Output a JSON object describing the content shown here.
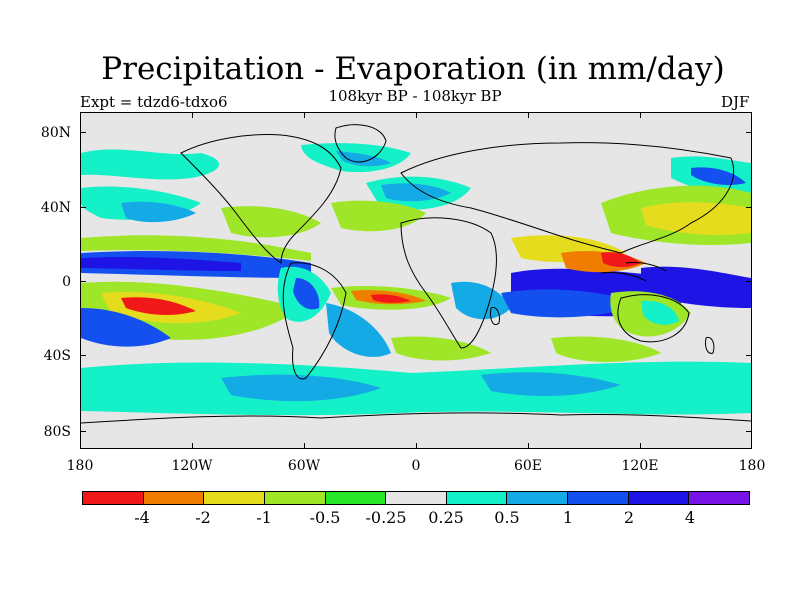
{
  "title": "Precipitation - Evaporation (in mm/day)",
  "subtitle": "108kyr BP - 108kyr BP",
  "experiment": "Expt = tdzd6-tdxo6",
  "season": "DJF",
  "y_ticks": [
    "80N",
    "40N",
    "0",
    "40S",
    "80S"
  ],
  "x_ticks": [
    "180",
    "120W",
    "60W",
    "0",
    "60E",
    "120E",
    "180"
  ],
  "colorbar": {
    "colors": [
      "#f01818",
      "#f07d00",
      "#e6dc1e",
      "#a0e628",
      "#28e628",
      "#e6e6e6",
      "#14f0c8",
      "#14aae6",
      "#1450f0",
      "#1e14e6",
      "#7814e6"
    ],
    "labels": [
      "-4",
      "-2",
      "-1",
      "-0.5",
      "-0.25",
      "0.25",
      "0.5",
      "1",
      "2",
      "4"
    ]
  }
}
